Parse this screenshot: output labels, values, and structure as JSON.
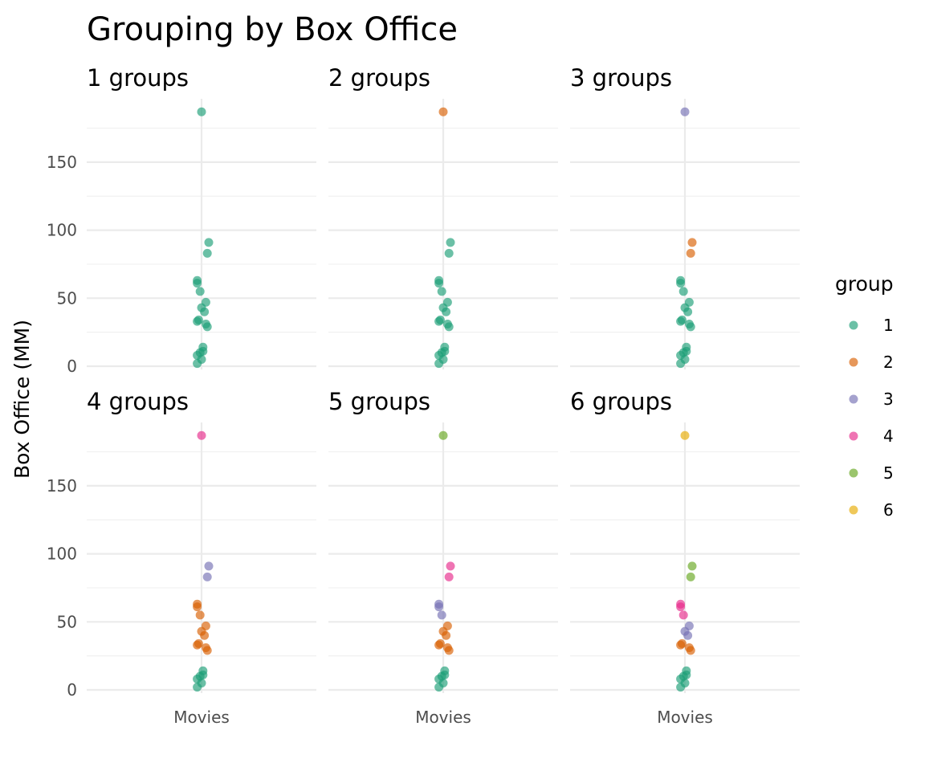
{
  "chart_data": {
    "type": "scatter",
    "title": "Grouping by Box Office",
    "ylabel": "Box Office (MM)",
    "xlabel": "",
    "x_category": "Movies",
    "ylim": [
      0,
      187
    ],
    "y_ticks": [
      0,
      50,
      100,
      150
    ],
    "y_tick_labels": [
      "0",
      "50",
      "100",
      "150"
    ],
    "grid": true,
    "legend": {
      "title": "group",
      "position": "right",
      "entries": [
        "1",
        "2",
        "3",
        "4",
        "5",
        "6"
      ]
    },
    "colors": {
      "1": "#1b9e77",
      "2": "#d95f02",
      "3": "#7570b3",
      "4": "#e7298a",
      "5": "#66a61e",
      "6": "#e6ab02"
    },
    "box_office_values": [
      187,
      91,
      83,
      63,
      61,
      55,
      47,
      43,
      40,
      34,
      33,
      31,
      29,
      14,
      11,
      10,
      8,
      5,
      2
    ],
    "jitter": [
      0.0,
      0.05,
      0.04,
      -0.03,
      -0.03,
      -0.01,
      0.03,
      0.0,
      0.02,
      -0.02,
      -0.03,
      0.03,
      0.04,
      0.01,
      0.01,
      -0.01,
      -0.03,
      0.0,
      -0.03
    ],
    "panels": [
      {
        "label": "1  groups",
        "groups": [
          1,
          1,
          1,
          1,
          1,
          1,
          1,
          1,
          1,
          1,
          1,
          1,
          1,
          1,
          1,
          1,
          1,
          1,
          1
        ]
      },
      {
        "label": "2  groups",
        "groups": [
          2,
          1,
          1,
          1,
          1,
          1,
          1,
          1,
          1,
          1,
          1,
          1,
          1,
          1,
          1,
          1,
          1,
          1,
          1
        ]
      },
      {
        "label": "3  groups",
        "groups": [
          3,
          2,
          2,
          1,
          1,
          1,
          1,
          1,
          1,
          1,
          1,
          1,
          1,
          1,
          1,
          1,
          1,
          1,
          1
        ]
      },
      {
        "label": "4  groups",
        "groups": [
          4,
          3,
          3,
          2,
          2,
          2,
          2,
          2,
          2,
          2,
          2,
          2,
          2,
          1,
          1,
          1,
          1,
          1,
          1
        ]
      },
      {
        "label": "5  groups",
        "groups": [
          5,
          4,
          4,
          3,
          3,
          3,
          2,
          2,
          2,
          2,
          2,
          2,
          2,
          1,
          1,
          1,
          1,
          1,
          1
        ]
      },
      {
        "label": "6  groups",
        "groups": [
          6,
          5,
          5,
          4,
          4,
          4,
          3,
          3,
          3,
          2,
          2,
          2,
          2,
          1,
          1,
          1,
          1,
          1,
          1
        ]
      }
    ]
  }
}
